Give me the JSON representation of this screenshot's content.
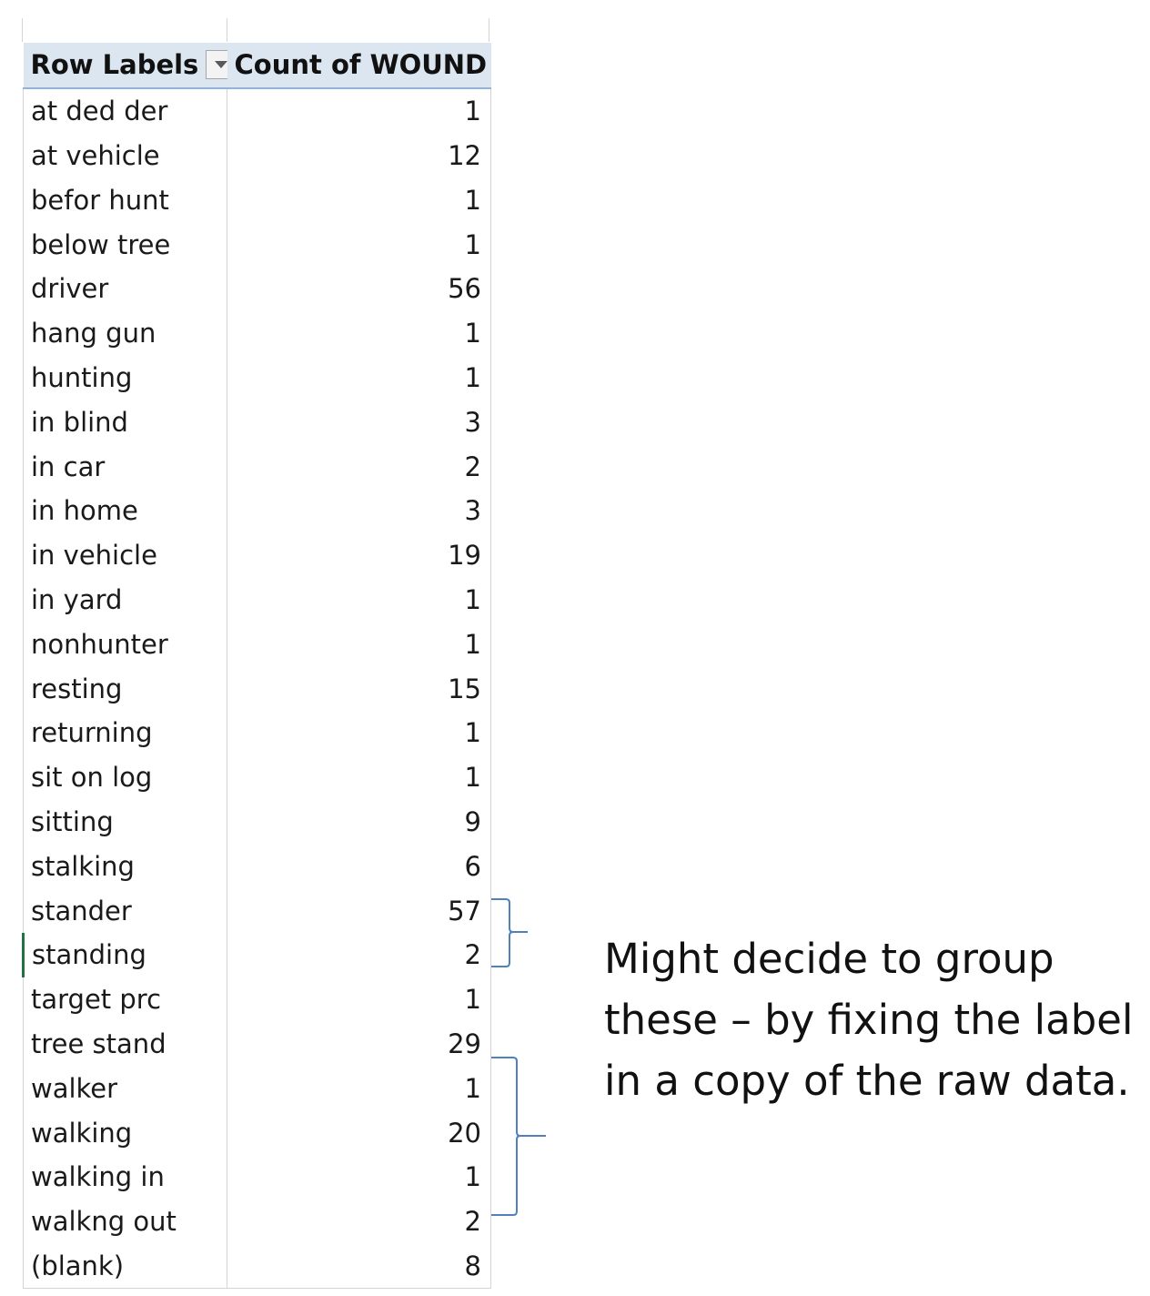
{
  "pivot": {
    "header": {
      "row_labels": "Row Labels",
      "count_label": "Count of WOUND",
      "filter_icon": "dropdown-arrow-icon"
    },
    "rows": [
      {
        "label": "at ded der",
        "count": "1"
      },
      {
        "label": "at vehicle",
        "count": "12"
      },
      {
        "label": "befor hunt",
        "count": "1"
      },
      {
        "label": "below tree",
        "count": "1"
      },
      {
        "label": "driver",
        "count": "56"
      },
      {
        "label": "hang gun",
        "count": "1"
      },
      {
        "label": "hunting",
        "count": "1"
      },
      {
        "label": "in blind",
        "count": "3"
      },
      {
        "label": "in car",
        "count": "2"
      },
      {
        "label": "in home",
        "count": "3"
      },
      {
        "label": "in vehicle",
        "count": "19"
      },
      {
        "label": "in yard",
        "count": "1"
      },
      {
        "label": "nonhunter",
        "count": "1"
      },
      {
        "label": "resting",
        "count": "15"
      },
      {
        "label": "returning",
        "count": "1"
      },
      {
        "label": "sit on log",
        "count": "1"
      },
      {
        "label": "sitting",
        "count": "9"
      },
      {
        "label": "stalking",
        "count": "6"
      },
      {
        "label": "stander",
        "count": "57"
      },
      {
        "label": "standing",
        "count": "2"
      },
      {
        "label": "target prc",
        "count": "1"
      },
      {
        "label": "tree stand",
        "count": "29"
      },
      {
        "label": "walker",
        "count": "1"
      },
      {
        "label": "walking",
        "count": "20"
      },
      {
        "label": "walking in",
        "count": "1"
      },
      {
        "label": "walkng out",
        "count": "2"
      },
      {
        "label": "(blank)",
        "count": "8"
      }
    ],
    "active_row": "standing"
  },
  "annotation": {
    "lines": [
      "Might decide to group",
      "these – by fixing the label",
      "in a copy of the raw data."
    ]
  },
  "colors": {
    "header_bg": "#dce6f1",
    "header_border": "#95b3d7",
    "brace": "#4f81bd",
    "active_cell_marker": "#217346"
  }
}
